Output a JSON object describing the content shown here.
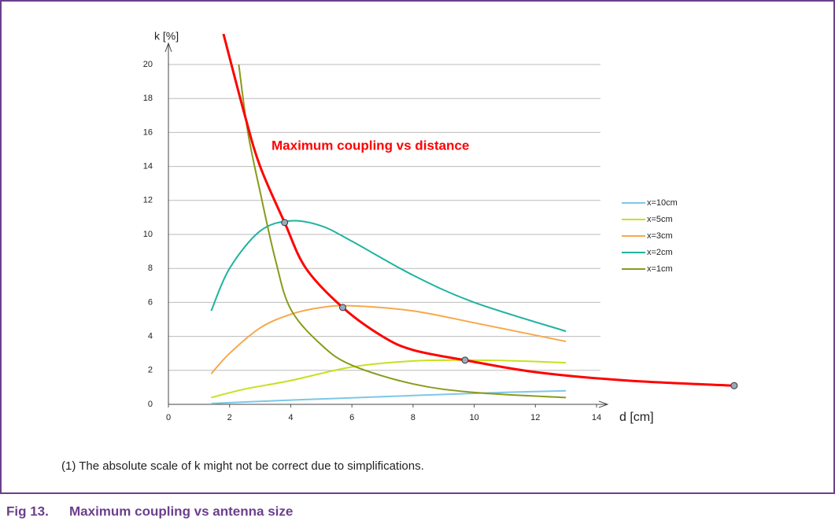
{
  "chart_data": {
    "type": "line",
    "y_label": "k [%]",
    "x_label": "d [cm]",
    "annotation": "Maximum coupling vs distance",
    "annotation_color": "#ff0000",
    "xlim": [
      0,
      14
    ],
    "ylim": [
      0,
      22
    ],
    "xticks": [
      0,
      2,
      4,
      6,
      8,
      10,
      12,
      14
    ],
    "yticks": [
      0,
      2,
      4,
      6,
      8,
      10,
      12,
      14,
      16,
      18,
      20
    ],
    "grid": true,
    "legend": "right",
    "series": [
      {
        "name": "x=10cm",
        "color": "#7cc8e8",
        "x": [
          1.4,
          4,
          7,
          10,
          13
        ],
        "values": [
          0.05,
          0.25,
          0.45,
          0.65,
          0.8
        ]
      },
      {
        "name": "x=5cm",
        "color": "#c8e020",
        "x": [
          1.4,
          2.5,
          4,
          6,
          8,
          10,
          11.5,
          13
        ],
        "values": [
          0.4,
          0.9,
          1.4,
          2.2,
          2.55,
          2.6,
          2.55,
          2.45
        ]
      },
      {
        "name": "x=3cm",
        "color": "#f7a84a",
        "x": [
          1.4,
          2,
          3,
          4,
          5,
          6,
          8,
          10,
          13
        ],
        "values": [
          1.8,
          3.0,
          4.5,
          5.3,
          5.7,
          5.8,
          5.5,
          4.8,
          3.7
        ]
      },
      {
        "name": "x=2cm",
        "color": "#1fb3a0",
        "x": [
          1.4,
          2,
          3,
          4,
          5,
          6,
          8,
          10,
          13
        ],
        "values": [
          5.5,
          8.0,
          10.2,
          10.8,
          10.5,
          9.6,
          7.6,
          6.0,
          4.3
        ]
      },
      {
        "name": "x=1cm",
        "color": "#8a9a1a",
        "x": [
          2.3,
          2.6,
          3,
          3.5,
          4,
          5,
          6,
          8,
          10,
          13
        ],
        "values": [
          20,
          16,
          12.5,
          8.5,
          5.6,
          3.5,
          2.3,
          1.2,
          0.7,
          0.4
        ]
      }
    ],
    "max_curve": {
      "color": "#ff0000",
      "x": [
        1.8,
        2.5,
        3,
        3.8,
        4.5,
        5.7,
        7,
        8,
        9.7,
        12,
        15,
        18.5
      ],
      "values": [
        21.8,
        17,
        14,
        10.7,
        8,
        5.7,
        4,
        3.2,
        2.6,
        1.9,
        1.4,
        1.1
      ]
    },
    "markers": {
      "x": [
        3.8,
        5.7,
        9.7,
        18.5
      ],
      "values": [
        10.7,
        5.7,
        2.6,
        1.1
      ]
    }
  },
  "footnote": "(1)   The absolute scale of k might not be correct due to simplifications.",
  "caption": {
    "number": "Fig 13.",
    "title": "Maximum coupling vs antenna size"
  }
}
